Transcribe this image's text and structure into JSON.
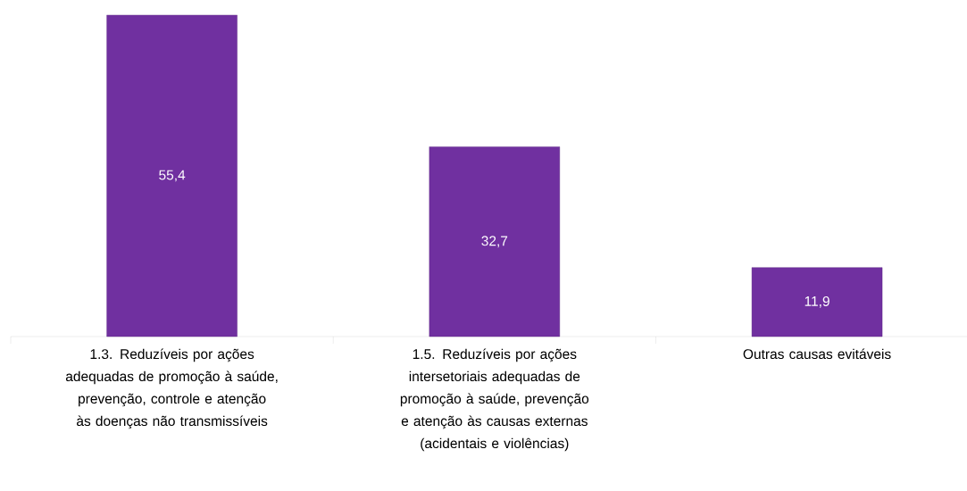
{
  "chart_data": {
    "type": "bar",
    "categories": [
      "1.3. Reduzíveis por ações adequadas de promoção à saúde, prevenção, controle e atenção às doenças não transmissíveis",
      "1.5. Reduzíveis por ações intersetoriais adequadas de promoção à saúde, prevenção e atenção às causas externas (acidentais e violências)",
      "Outras causas evitáveis"
    ],
    "values": [
      55.4,
      32.7,
      11.9
    ],
    "value_labels": [
      "55,4",
      "32,7",
      "11,9"
    ],
    "color": "#7030a0"
  }
}
